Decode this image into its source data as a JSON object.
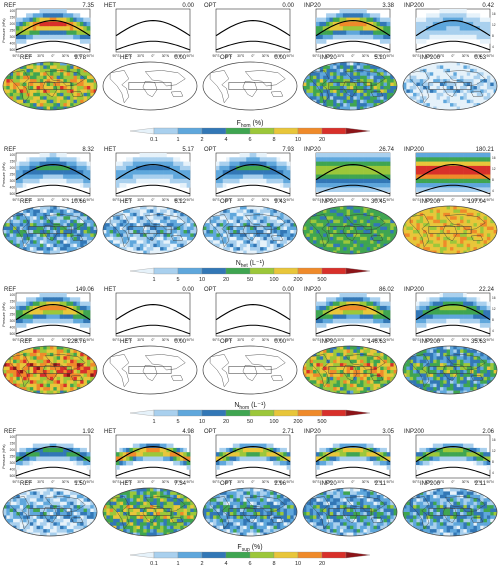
{
  "experiments": [
    "REF",
    "HET",
    "OPT",
    "INP20",
    "INP200"
  ],
  "profile_axis": {
    "left_label": "Pressure (hPa)",
    "right_label": "Height (km)",
    "pressure_ticks": [
      "100",
      "150",
      "200",
      "250",
      "300",
      "400",
      "500"
    ],
    "height_ticks": [
      "16",
      "12",
      "8",
      "4"
    ],
    "lat_ticks": [
      "90°S",
      "60°S",
      "30°S",
      "0°",
      "30°N",
      "60°N",
      "90°N"
    ]
  },
  "panels": [
    {
      "quantity": "F",
      "subscript": "hom",
      "unit": "(%)",
      "profile_values": [
        "7.35",
        "0.00",
        "0.00",
        "3.38",
        "0.42"
      ],
      "map_values": [
        "9.78",
        "0.00",
        "0.00",
        "5.20",
        "0.63"
      ],
      "colorbar_ticks": [
        "0.1",
        "1",
        "2",
        "4",
        "6",
        "8",
        "10",
        "20"
      ],
      "colors": [
        "#e6f2fa",
        "#a9d0ee",
        "#5fa7dc",
        "#3277b6",
        "#3fa551",
        "#9cc73a",
        "#e8c63a",
        "#ef8a2a",
        "#d8302a",
        "#8c1418"
      ]
    },
    {
      "quantity": "N",
      "subscript": "het",
      "unit": "(L⁻¹)",
      "profile_values": [
        "8.32",
        "5.17",
        "7.93",
        "26.74",
        "180.21"
      ],
      "map_values": [
        "10.66",
        "6.22",
        "9.43",
        "30.45",
        "197.04"
      ],
      "colorbar_ticks": [
        "1",
        "5",
        "10",
        "20",
        "50",
        "100",
        "200",
        "500"
      ],
      "colors": [
        "#e6f2fa",
        "#a9d0ee",
        "#5fa7dc",
        "#3277b6",
        "#3fa551",
        "#9cc73a",
        "#e8c63a",
        "#ef8a2a",
        "#d8302a",
        "#8c1418"
      ]
    },
    {
      "quantity": "N",
      "subscript": "hom",
      "unit": "(L⁻¹)",
      "profile_values": [
        "149.06",
        "0.00",
        "0.00",
        "86.02",
        "22.24"
      ],
      "map_values": [
        "228.76",
        "0.00",
        "0.00",
        "146.63",
        "35.63"
      ],
      "colorbar_ticks": [
        "1",
        "5",
        "10",
        "20",
        "50",
        "100",
        "200",
        "500"
      ],
      "colors": [
        "#e6f2fa",
        "#a9d0ee",
        "#5fa7dc",
        "#3277b6",
        "#3fa551",
        "#9cc73a",
        "#e8c63a",
        "#ef8a2a",
        "#d8302a",
        "#8c1418"
      ]
    },
    {
      "quantity": "F",
      "subscript": "sup",
      "unit": "(%)",
      "profile_values": [
        "1.92",
        "4.98",
        "2.71",
        "3.05",
        "2.06"
      ],
      "map_values": [
        "1.50",
        "7.34",
        "2.96",
        "2.11",
        "2.11"
      ],
      "colorbar_ticks": [
        "0.1",
        "1",
        "2",
        "4",
        "6",
        "8",
        "10",
        "20"
      ],
      "colors": [
        "#e6f2fa",
        "#a9d0ee",
        "#5fa7dc",
        "#3277b6",
        "#3fa551",
        "#9cc73a",
        "#e8c63a",
        "#ef8a2a",
        "#d8302a",
        "#8c1418"
      ]
    }
  ],
  "chart_data": {
    "type": "heatmap",
    "row_quantities": [
      "F_hom (%)",
      "N_het (L⁻¹)",
      "N_hom (L⁻¹)",
      "F_sup (%)"
    ],
    "columns": [
      "REF",
      "HET",
      "OPT",
      "INP20",
      "INP200"
    ],
    "profile_mean_values": [
      [
        7.35,
        0.0,
        0.0,
        3.38,
        0.42
      ],
      [
        8.32,
        5.17,
        7.93,
        26.74,
        180.21
      ],
      [
        149.06,
        0.0,
        0.0,
        86.02,
        22.24
      ],
      [
        1.92,
        4.98,
        2.71,
        3.05,
        2.06
      ]
    ],
    "map_mean_values": [
      [
        9.78,
        0.0,
        0.0,
        5.2,
        0.63
      ],
      [
        10.66,
        6.22,
        9.43,
        30.45,
        197.04
      ],
      [
        228.76,
        0.0,
        0.0,
        146.63,
        35.63
      ],
      [
        1.5,
        7.34,
        2.96,
        2.11,
        2.11
      ]
    ],
    "profile_x_range": [
      "90°S",
      "90°N"
    ],
    "profile_y_range_hPa": [
      100,
      500
    ],
    "grid": false,
    "colorbar_position": "below each panel row"
  }
}
